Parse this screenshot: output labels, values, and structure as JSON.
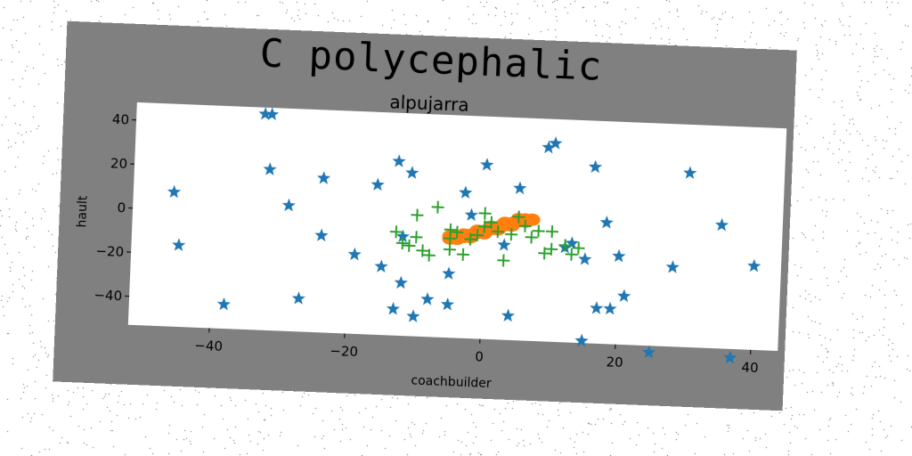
{
  "figure": {
    "suptitle": "C polycephalic",
    "background_color": "#808080"
  },
  "chart_data": {
    "type": "scatter",
    "title": "alpujarra",
    "xlabel": "coachbuilder",
    "ylabel": "hault",
    "xlim": [
      -52,
      44
    ],
    "ylim": [
      -53,
      48
    ],
    "xticks": [
      -40,
      -20,
      0,
      20,
      40
    ],
    "yticks": [
      -40,
      -20,
      0,
      20,
      40
    ],
    "grid": false,
    "series": [
      {
        "marker": "star",
        "color": "#1f77b4",
        "points": [
          [
            -33,
            45
          ],
          [
            -32,
            45
          ],
          [
            -46,
            8
          ],
          [
            -45,
            -16
          ],
          [
            -38,
            -42
          ],
          [
            -32,
            20
          ],
          [
            -29,
            4
          ],
          [
            -27,
            -38
          ],
          [
            -24,
            17
          ],
          [
            -24,
            -9
          ],
          [
            -19,
            -17
          ],
          [
            -16,
            15
          ],
          [
            -15,
            -22
          ],
          [
            -13,
            26
          ],
          [
            -13,
            -41
          ],
          [
            -12,
            -29
          ],
          [
            -12,
            -8
          ],
          [
            -11,
            21
          ],
          [
            -10,
            -44
          ],
          [
            -8,
            -36
          ],
          [
            -5,
            -24
          ],
          [
            -5,
            -38
          ],
          [
            -3,
            13
          ],
          [
            -2,
            3
          ],
          [
            0,
            26
          ],
          [
            3,
            -10
          ],
          [
            4,
            -42
          ],
          [
            5,
            16
          ],
          [
            9,
            35
          ],
          [
            10,
            37
          ],
          [
            12,
            -10
          ],
          [
            13,
            -8
          ],
          [
            15,
            -15
          ],
          [
            16,
            27
          ],
          [
            15,
            -52
          ],
          [
            17,
            -37
          ],
          [
            18,
            2
          ],
          [
            19,
            -37
          ],
          [
            20,
            -13
          ],
          [
            21,
            -31
          ],
          [
            25,
            -56
          ],
          [
            28,
            -17
          ],
          [
            30,
            26
          ],
          [
            35,
            3
          ],
          [
            37,
            -57
          ],
          [
            40,
            -15
          ]
        ]
      },
      {
        "marker": "x-cluster",
        "color": "#ff7f0e",
        "points": [
          [
            -5,
            -8
          ],
          [
            -4,
            -7
          ],
          [
            -3,
            -7
          ],
          [
            -2,
            -6
          ],
          [
            -1,
            -5
          ],
          [
            0,
            -4
          ],
          [
            1,
            -3
          ],
          [
            2,
            -2
          ],
          [
            3,
            -1
          ],
          [
            4,
            0
          ],
          [
            5,
            1
          ],
          [
            6,
            2
          ],
          [
            -4,
            -8
          ],
          [
            -2,
            -7
          ],
          [
            0,
            -5
          ],
          [
            2,
            -3
          ],
          [
            4,
            -1
          ],
          [
            6,
            1
          ],
          [
            -3,
            -6
          ],
          [
            -1,
            -4
          ],
          [
            1,
            -2
          ],
          [
            3,
            0
          ],
          [
            5,
            2
          ],
          [
            -5,
            -7
          ],
          [
            7,
            2
          ]
        ]
      },
      {
        "marker": "plus",
        "color": "#2ca02c",
        "points": [
          [
            -13,
            -6
          ],
          [
            -12,
            -11
          ],
          [
            -11,
            -12
          ],
          [
            -10,
            -8
          ],
          [
            -10,
            2
          ],
          [
            -9,
            -14
          ],
          [
            -8,
            -16
          ],
          [
            -7,
            6
          ],
          [
            -5,
            -4
          ],
          [
            -5,
            -8
          ],
          [
            -5,
            -13
          ],
          [
            -4,
            -5
          ],
          [
            -3,
            -15
          ],
          [
            -2,
            -8
          ],
          [
            -1,
            -6
          ],
          [
            0,
            4
          ],
          [
            0,
            -2
          ],
          [
            1,
            0
          ],
          [
            2,
            -4
          ],
          [
            3,
            -17
          ],
          [
            4,
            -5
          ],
          [
            5,
            3
          ],
          [
            6,
            -1
          ],
          [
            7,
            -6
          ],
          [
            8,
            -3
          ],
          [
            9,
            -13
          ],
          [
            10,
            -11
          ],
          [
            10,
            -3
          ],
          [
            12,
            -9
          ],
          [
            13,
            -13
          ],
          [
            14,
            -10
          ]
        ]
      }
    ]
  }
}
